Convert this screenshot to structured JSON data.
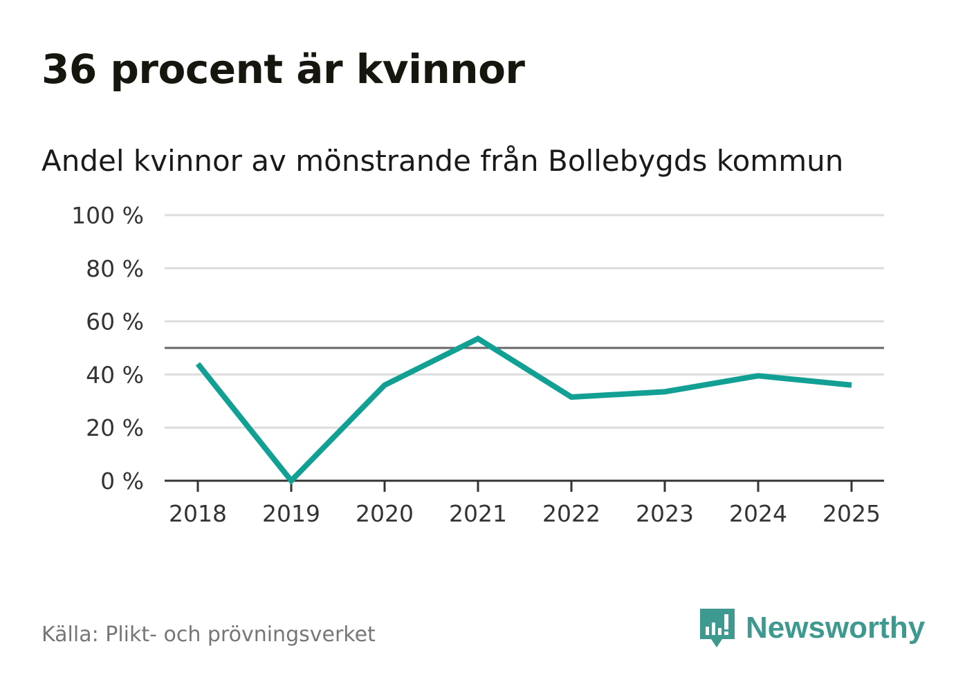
{
  "title": "36 procent är kvinnor",
  "subtitle": "Andel kvinnor av mönstrande från Bollebygds kommun",
  "source": "Källa: Plikt- och prövningsverket",
  "brand": "Newsworthy",
  "colors": {
    "line": "#12a095",
    "grid": "#dddddd",
    "axis": "#333333",
    "reference": "#666666",
    "brand": "#3e9a90"
  },
  "chart_data": {
    "type": "line",
    "title": "Andel kvinnor av mönstrande från Bollebygds kommun",
    "xlabel": "",
    "ylabel": "",
    "categories": [
      "2018",
      "2019",
      "2020",
      "2021",
      "2022",
      "2023",
      "2024",
      "2025"
    ],
    "series": [
      {
        "name": "Andel kvinnor",
        "values": [
          44,
          0,
          36,
          53.5,
          31.5,
          33.5,
          39.5,
          36
        ]
      }
    ],
    "ylim": [
      0,
      100
    ],
    "yticks": [
      0,
      20,
      40,
      60,
      80,
      100
    ],
    "ytick_labels": [
      "0 %",
      "20 %",
      "40 %",
      "60 %",
      "80 %",
      "100 %"
    ],
    "reference_line": 50,
    "grid": true,
    "legend": "none"
  }
}
